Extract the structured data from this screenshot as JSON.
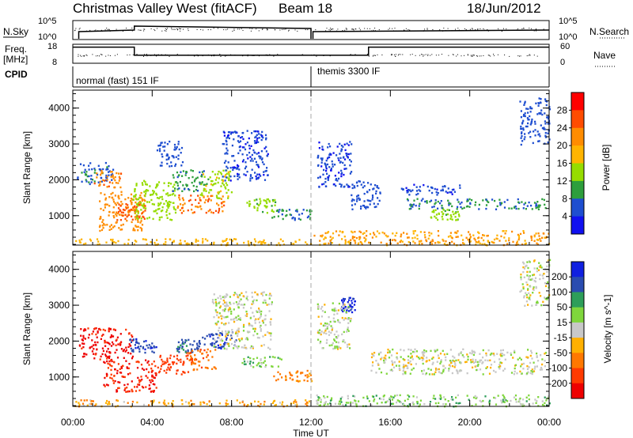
{
  "header": {
    "station": "Christmas Valley West (fitACF)",
    "beam": "Beam 18",
    "date": "18/Jun/2012"
  },
  "top_panels": {
    "nsky_label": "N.Sky",
    "nsky_ticks": [
      "10^5",
      "10^0"
    ],
    "nsearch_label": "N.Search",
    "nsearch_ticks": [
      "10^5",
      "10^0"
    ],
    "freq_label": "Freq.",
    "freq_unit": "[MHz]",
    "freq_ticks": [
      "18",
      "8"
    ],
    "nave_label": "Nave",
    "nave_ticks": [
      "60",
      "0"
    ],
    "cpid_label": "CPID",
    "cpid_segments": [
      {
        "label": "normal (fast) 151 IF",
        "start_hour": 0,
        "end_hour": 12
      },
      {
        "label": "themis 3300 IF",
        "start_hour": 12,
        "end_hour": 24
      }
    ],
    "freq_steps": [
      {
        "start_hour": 0,
        "end_hour": 3.1,
        "value": 0.85
      },
      {
        "start_hour": 3.1,
        "end_hour": 12,
        "value": 0.42
      },
      {
        "start_hour": 12,
        "end_hour": 14.9,
        "value": 0.42
      },
      {
        "start_hour": 14.9,
        "end_hour": 24,
        "value": 0.85
      }
    ]
  },
  "x_axis": {
    "label": "Time UT",
    "ticks": [
      "00:00",
      "04:00",
      "08:00",
      "12:00",
      "16:00",
      "20:00",
      "00:00"
    ]
  },
  "power_colorbar": {
    "label": "Power [dB]",
    "ticks": [
      "28",
      "24",
      "20",
      "16",
      "12",
      "8",
      "4"
    ],
    "colors": [
      "#ff0000",
      "#ff4c00",
      "#ff8c00",
      "#ffb400",
      "#96dc00",
      "#2d9e3c",
      "#1e4ed0",
      "#1010f0"
    ]
  },
  "velocity_colorbar": {
    "label": "Velocity [m s^-1]",
    "ticks": [
      "200",
      "100",
      "50",
      "15",
      "-15",
      "-50",
      "-100",
      "-200"
    ],
    "colors": [
      "#1020e0",
      "#2a4cb0",
      "#2d9e5a",
      "#7fd63c",
      "#c8c8c8",
      "#ffb000",
      "#ff7800",
      "#ff3a00",
      "#ee0000"
    ]
  },
  "chart_data": [
    {
      "type": "heatmap",
      "title": "Power",
      "xlabel": "Time UT",
      "ylabel": "Slant Range [km]",
      "xlim": [
        0,
        24
      ],
      "ylim": [
        180,
        4500
      ],
      "yticks": [
        1000,
        2000,
        3000,
        4000
      ],
      "colorbar_label": "Power [dB]",
      "colorbar_range": [
        0,
        30
      ],
      "blobs": [
        {
          "t0": 0.2,
          "t1": 2.0,
          "r0": 1900,
          "r1": 2500,
          "val": 7
        },
        {
          "t0": 1.0,
          "t1": 2.4,
          "r0": 1800,
          "r1": 2300,
          "val": 23
        },
        {
          "t0": 1.3,
          "t1": 3.6,
          "r0": 600,
          "r1": 1700,
          "val": 22
        },
        {
          "t0": 2.2,
          "t1": 3.7,
          "r0": 900,
          "r1": 1400,
          "val": 26
        },
        {
          "t0": 3.0,
          "t1": 5.2,
          "r0": 900,
          "r1": 2000,
          "val": 14
        },
        {
          "t0": 4.2,
          "t1": 5.5,
          "r0": 2400,
          "r1": 3100,
          "val": 6
        },
        {
          "t0": 5.0,
          "t1": 6.8,
          "r0": 1700,
          "r1": 2300,
          "val": 9
        },
        {
          "t0": 5.2,
          "t1": 7.6,
          "r0": 1100,
          "r1": 1600,
          "val": 24
        },
        {
          "t0": 6.4,
          "t1": 8.0,
          "r0": 1500,
          "r1": 2300,
          "val": 15
        },
        {
          "t0": 7.5,
          "t1": 9.8,
          "r0": 2000,
          "r1": 3400,
          "val": 5
        },
        {
          "t0": 8.7,
          "t1": 10.2,
          "r0": 1100,
          "r1": 1500,
          "val": 13
        },
        {
          "t0": 10.0,
          "t1": 12.0,
          "r0": 900,
          "r1": 1200,
          "val": 8
        },
        {
          "t0": 0.1,
          "t1": 12.0,
          "r0": 200,
          "r1": 380,
          "val": 18
        },
        {
          "t0": 12.1,
          "t1": 24.0,
          "r0": 200,
          "r1": 600,
          "val": 20
        },
        {
          "t0": 12.3,
          "t1": 14.0,
          "r0": 1800,
          "r1": 3100,
          "val": 5
        },
        {
          "t0": 14.0,
          "t1": 15.5,
          "r0": 1200,
          "r1": 2000,
          "val": 6
        },
        {
          "t0": 16.8,
          "t1": 23.8,
          "r0": 1200,
          "r1": 1500,
          "val": 8
        },
        {
          "t0": 18.0,
          "t1": 19.5,
          "r0": 900,
          "r1": 1200,
          "val": 13
        },
        {
          "t0": 16.5,
          "t1": 19.5,
          "r0": 1600,
          "r1": 1900,
          "val": 5
        },
        {
          "t0": 22.5,
          "t1": 24.0,
          "r0": 3000,
          "r1": 4300,
          "val": 6
        }
      ]
    },
    {
      "type": "heatmap",
      "title": "Velocity",
      "xlabel": "Time UT",
      "ylabel": "Slant Range [km]",
      "xlim": [
        0,
        24
      ],
      "ylim": [
        180,
        4500
      ],
      "yticks": [
        1000,
        2000,
        3000,
        4000
      ],
      "colorbar_label": "Velocity [m s^-1]",
      "colorbar_range": [
        -250,
        250
      ],
      "blobs": [
        {
          "t0": 0.3,
          "t1": 3.0,
          "r0": 1500,
          "r1": 2400,
          "val": -220
        },
        {
          "t0": 1.5,
          "t1": 4.2,
          "r0": 600,
          "r1": 1500,
          "val": -200
        },
        {
          "t0": 2.8,
          "t1": 4.2,
          "r0": 1700,
          "r1": 2100,
          "val": 180
        },
        {
          "t0": 4.2,
          "t1": 6.0,
          "r0": 1100,
          "r1": 1700,
          "val": -160
        },
        {
          "t0": 5.2,
          "t1": 6.4,
          "r0": 1700,
          "r1": 2100,
          "val": 120
        },
        {
          "t0": 5.8,
          "t1": 7.2,
          "r0": 1200,
          "r1": 1800,
          "val": -80
        },
        {
          "t0": 6.2,
          "t1": 8.2,
          "r0": 1800,
          "r1": 2300,
          "val": 180
        },
        {
          "t0": 7.0,
          "t1": 10.0,
          "r0": 1800,
          "r1": 3400,
          "val": 0
        },
        {
          "t0": 8.5,
          "t1": 10.5,
          "r0": 1300,
          "r1": 1600,
          "val": 35
        },
        {
          "t0": 10.0,
          "t1": 12.0,
          "r0": 900,
          "r1": 1200,
          "val": -70
        },
        {
          "t0": 0.1,
          "t1": 12.0,
          "r0": 200,
          "r1": 380,
          "val": -40
        },
        {
          "t0": 12.1,
          "t1": 24.0,
          "r0": 200,
          "r1": 520,
          "val": 30
        },
        {
          "t0": 13.5,
          "t1": 14.2,
          "r0": 2800,
          "r1": 3300,
          "val": 220
        },
        {
          "t0": 12.3,
          "t1": 14.0,
          "r0": 1800,
          "r1": 3100,
          "val": 5
        },
        {
          "t0": 15.0,
          "t1": 23.8,
          "r0": 1100,
          "r1": 1800,
          "val": 0
        },
        {
          "t0": 22.5,
          "t1": 24.0,
          "r0": 3000,
          "r1": 4300,
          "val": 5
        }
      ]
    }
  ]
}
